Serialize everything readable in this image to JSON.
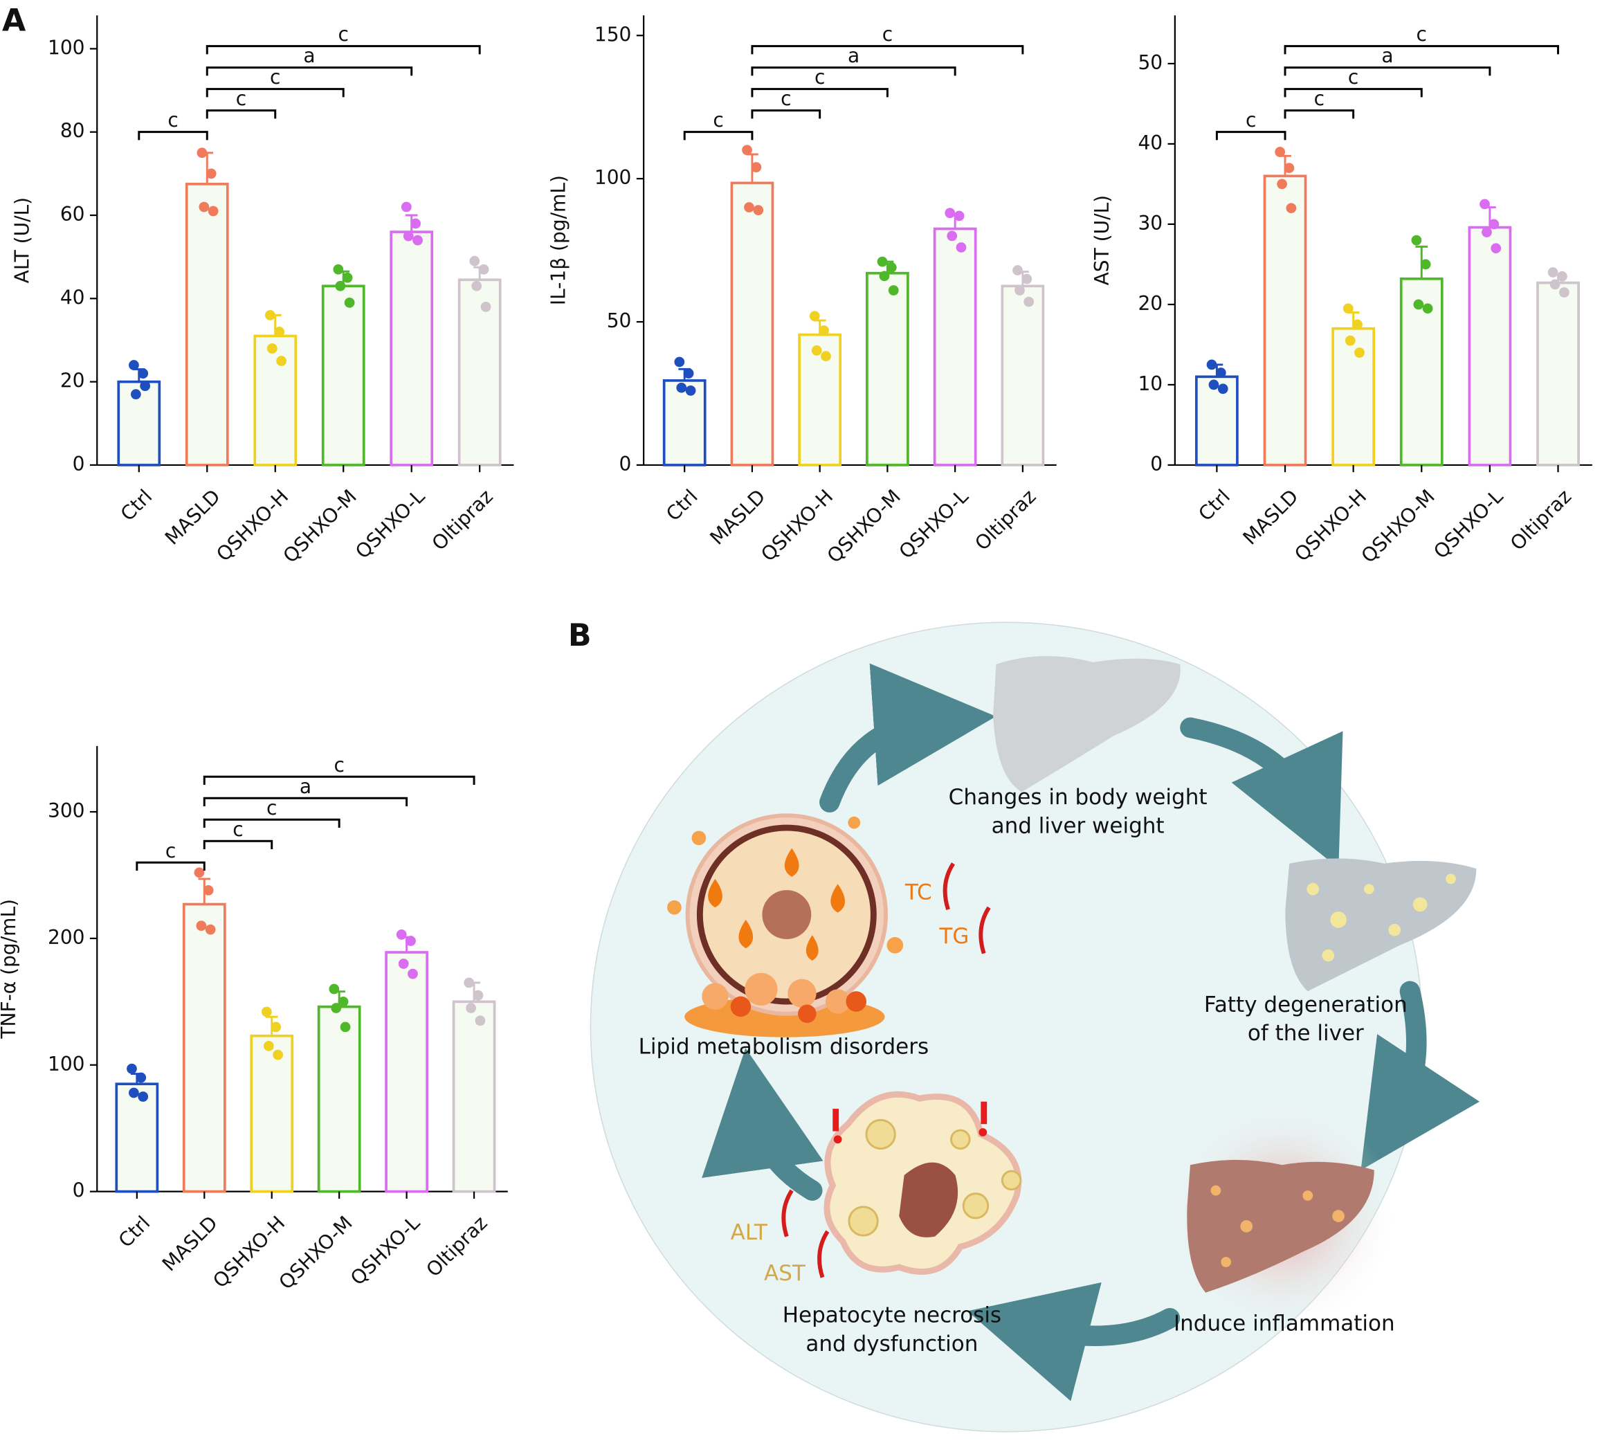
{
  "panel_labels": [
    "A",
    "B"
  ],
  "chart_data": [
    {
      "type": "bar",
      "ylabel": "ALT (U/L)",
      "categories": [
        "Ctrl",
        "MASLD",
        "QSHXO-H",
        "QSHXO-M",
        "QSHXO-L",
        "Oltipraz"
      ],
      "colors": [
        "#1f4fbf",
        "#f07b5a",
        "#f0d020",
        "#4fb82a",
        "#d96cf0",
        "#cfc4cc"
      ],
      "values": [
        20,
        67.5,
        31,
        43,
        56,
        44.5
      ],
      "errors": [
        3,
        7.5,
        5,
        3.5,
        4,
        3
      ],
      "points": [
        [
          24,
          22,
          17,
          19
        ],
        [
          75,
          70,
          62,
          61
        ],
        [
          36,
          32,
          28,
          25
        ],
        [
          47,
          45,
          43,
          39
        ],
        [
          62,
          58,
          55,
          54
        ],
        [
          49,
          47,
          43,
          38
        ]
      ],
      "ylim": [
        0,
        108
      ],
      "yticks": [
        0,
        20,
        40,
        60,
        80,
        100
      ],
      "annotations": [
        {
          "from": "Ctrl",
          "to": "MASLD",
          "label": "c"
        },
        {
          "from": "MASLD",
          "to": "QSHXO-H",
          "label": "c"
        },
        {
          "from": "MASLD",
          "to": "QSHXO-M",
          "label": "c"
        },
        {
          "from": "MASLD",
          "to": "QSHXO-L",
          "label": "a"
        },
        {
          "from": "MASLD",
          "to": "Oltipraz",
          "label": "c"
        }
      ]
    },
    {
      "type": "bar",
      "ylabel": "IL-1β (pg/mL)",
      "categories": [
        "Ctrl",
        "MASLD",
        "QSHXO-H",
        "QSHXO-M",
        "QSHXO-L",
        "Oltipraz"
      ],
      "colors": [
        "#1f4fbf",
        "#f07b5a",
        "#f0d020",
        "#4fb82a",
        "#d96cf0",
        "#cfc4cc"
      ],
      "values": [
        29.5,
        98.5,
        45.5,
        67,
        82.5,
        62.5
      ],
      "errors": [
        4,
        10,
        5,
        4,
        5,
        5
      ],
      "points": [
        [
          36,
          32,
          27,
          26
        ],
        [
          110,
          104,
          90,
          89
        ],
        [
          52,
          47,
          40,
          38
        ],
        [
          71,
          69,
          66,
          61
        ],
        [
          88,
          87,
          80,
          76
        ],
        [
          68,
          65,
          61,
          57
        ]
      ],
      "ylim": [
        0,
        157
      ],
      "yticks": [
        0,
        50,
        100,
        150
      ],
      "annotations": [
        {
          "from": "Ctrl",
          "to": "MASLD",
          "label": "c"
        },
        {
          "from": "MASLD",
          "to": "QSHXO-H",
          "label": "c"
        },
        {
          "from": "MASLD",
          "to": "QSHXO-M",
          "label": "c"
        },
        {
          "from": "MASLD",
          "to": "QSHXO-L",
          "label": "a"
        },
        {
          "from": "MASLD",
          "to": "Oltipraz",
          "label": "c"
        }
      ]
    },
    {
      "type": "bar",
      "ylabel": "AST (U/L)",
      "categories": [
        "Ctrl",
        "MASLD",
        "QSHXO-H",
        "QSHXO-M",
        "QSHXO-L",
        "Oltipraz"
      ],
      "colors": [
        "#1f4fbf",
        "#f07b5a",
        "#f0d020",
        "#4fb82a",
        "#d96cf0",
        "#cfc4cc"
      ],
      "values": [
        11,
        36,
        17,
        23.2,
        29.6,
        22.7
      ],
      "errors": [
        1.5,
        2.5,
        2,
        4,
        2.5,
        1
      ],
      "points": [
        [
          12.5,
          11.5,
          10,
          9.5
        ],
        [
          39,
          37,
          35,
          32
        ],
        [
          19.5,
          17.5,
          15.5,
          14
        ],
        [
          28,
          25,
          20,
          19.5
        ],
        [
          32.5,
          30,
          29,
          27
        ],
        [
          24,
          23.5,
          22.5,
          21.5
        ]
      ],
      "ylim": [
        0,
        56
      ],
      "yticks": [
        0,
        10,
        20,
        30,
        40,
        50
      ],
      "annotations": [
        {
          "from": "Ctrl",
          "to": "MASLD",
          "label": "c"
        },
        {
          "from": "MASLD",
          "to": "QSHXO-H",
          "label": "c"
        },
        {
          "from": "MASLD",
          "to": "QSHXO-M",
          "label": "c"
        },
        {
          "from": "MASLD",
          "to": "QSHXO-L",
          "label": "a"
        },
        {
          "from": "MASLD",
          "to": "Oltipraz",
          "label": "c"
        }
      ]
    },
    {
      "type": "bar",
      "ylabel": "TNF-α (pg/mL)",
      "categories": [
        "Ctrl",
        "MASLD",
        "QSHXO-H",
        "QSHXO-M",
        "QSHXO-L",
        "Oltipraz"
      ],
      "colors": [
        "#1f4fbf",
        "#f07b5a",
        "#f0d020",
        "#4fb82a",
        "#d96cf0",
        "#cfc4cc"
      ],
      "values": [
        85,
        227,
        123,
        146,
        189,
        150
      ],
      "errors": [
        8,
        20,
        15,
        12,
        12,
        15
      ],
      "points": [
        [
          97,
          90,
          78,
          75
        ],
        [
          252,
          238,
          210,
          207
        ],
        [
          142,
          130,
          115,
          108
        ],
        [
          160,
          150,
          145,
          130
        ],
        [
          203,
          198,
          180,
          172
        ],
        [
          165,
          155,
          145,
          135
        ]
      ],
      "ylim": [
        0,
        352
      ],
      "yticks": [
        0,
        100,
        200,
        300
      ],
      "annotations": [
        {
          "from": "Ctrl",
          "to": "MASLD",
          "label": "c"
        },
        {
          "from": "MASLD",
          "to": "QSHXO-H",
          "label": "c"
        },
        {
          "from": "MASLD",
          "to": "QSHXO-M",
          "label": "c"
        },
        {
          "from": "MASLD",
          "to": "QSHXO-L",
          "label": "a"
        },
        {
          "from": "MASLD",
          "to": "Oltipraz",
          "label": "c"
        }
      ]
    }
  ],
  "diagram": {
    "nodes": [
      {
        "lines": [
          "Changes in body weight",
          "and liver weight"
        ]
      },
      {
        "lines": [
          "Fatty degeneration",
          "of the liver"
        ]
      },
      {
        "lines": [
          "Induce inflammation"
        ]
      },
      {
        "lines": [
          "Hepatocyte necrosis",
          "and dysfunction"
        ]
      },
      {
        "lines": [
          "Lipid metabolism disorders"
        ]
      }
    ],
    "markers": [
      "TC",
      "TG",
      "ALT",
      "AST"
    ]
  }
}
